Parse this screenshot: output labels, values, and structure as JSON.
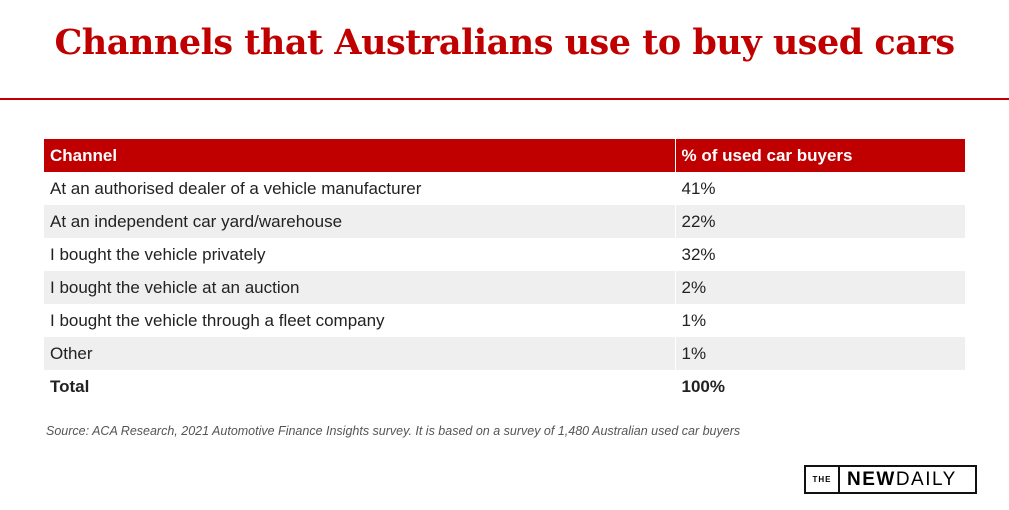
{
  "title": "Channels that Australians use to buy used cars",
  "chart_data": {
    "type": "table",
    "columns": [
      "Channel",
      "% of used car buyers"
    ],
    "rows": [
      [
        "At an authorised dealer of a vehicle manufacturer",
        "41%"
      ],
      [
        "At an independent car yard/warehouse",
        "22%"
      ],
      [
        "I bought the vehicle privately",
        "32%"
      ],
      [
        "I bought the vehicle at an auction",
        "2%"
      ],
      [
        "I bought the vehicle through a fleet company",
        "1%"
      ],
      [
        "Other",
        "1%"
      ],
      [
        "Total",
        "100%"
      ]
    ]
  },
  "source": "Source: ACA Research, 2021 Automotive Finance Insights survey. It is based on a survey of 1,480 Australian used car buyers",
  "logo": {
    "the": "THE",
    "new": "NEW",
    "daily": "DAILY"
  },
  "colors": {
    "accent": "#c00000",
    "row_alt": "#efefef"
  }
}
